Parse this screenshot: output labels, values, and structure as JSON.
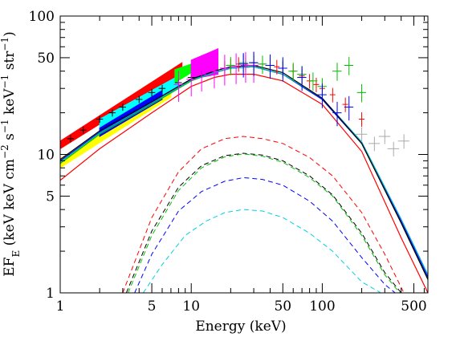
{
  "chart_data": {
    "type": "line",
    "title": "",
    "xlabel": "Energy (keV)",
    "ylabel": {
      "prefix": "EF",
      "sub": "E",
      "mid1": " (keV keV cm",
      "sup1": "−2",
      "mid2": " s",
      "sup2": "−1",
      "mid3": " keV",
      "sup3": "−1",
      "mid4": " str",
      "sup4": "−1",
      "suffix": ")"
    },
    "xscale": "log",
    "yscale": "log",
    "xlim": [
      1,
      640
    ],
    "ylim": [
      1,
      100
    ],
    "xticks": [
      {
        "value": 1,
        "label": "1"
      },
      {
        "value": 5,
        "label": "5"
      },
      {
        "value": 10,
        "label": "10"
      },
      {
        "value": 50,
        "label": "50"
      },
      {
        "value": 100,
        "label": "100"
      },
      {
        "value": 500,
        "label": "500"
      }
    ],
    "yticks": [
      {
        "value": 1,
        "label": "1"
      },
      {
        "value": 5,
        "label": "5"
      },
      {
        "value": 10,
        "label": "10"
      },
      {
        "value": 50,
        "label": "50"
      },
      {
        "value": 100,
        "label": "100"
      }
    ],
    "model_curves": [
      {
        "color": "#ff0000",
        "x": [
          1,
          2,
          5,
          10,
          15,
          20,
          30,
          50,
          100,
          200,
          400,
          640
        ],
        "y": [
          6.5,
          11,
          20,
          31,
          36,
          38,
          38,
          34,
          23,
          10.5,
          2.5,
          1.0
        ]
      },
      {
        "color": "#00c000",
        "x": [
          1,
          2,
          5,
          10,
          15,
          20,
          30,
          50,
          100,
          200,
          400,
          640
        ],
        "y": [
          8.6,
          14,
          23,
          34,
          39,
          42,
          43,
          38,
          25,
          12,
          3.2,
          1.25
        ]
      },
      {
        "color": "#0000ff",
        "x": [
          1,
          2,
          5,
          10,
          15,
          20,
          30,
          50,
          100,
          200,
          400,
          640
        ],
        "y": [
          9,
          14.5,
          24,
          35,
          39,
          42,
          43,
          38,
          25,
          12,
          3.3,
          1.3
        ]
      },
      {
        "color": "#00b0d0",
        "x": [
          1,
          2,
          5,
          10,
          15,
          20,
          30,
          50,
          100,
          200,
          400,
          640
        ],
        "y": [
          8.8,
          14.3,
          23.5,
          34.5,
          39,
          42,
          43,
          38,
          25.5,
          12.3,
          3.4,
          1.35
        ]
      },
      {
        "color": "#000000",
        "x": [
          1,
          2,
          5,
          10,
          15,
          20,
          30,
          50,
          100,
          200,
          400,
          640
        ],
        "y": [
          9.2,
          14.8,
          24,
          35,
          40,
          43,
          44,
          39,
          25.5,
          12,
          3.2,
          1.25
        ]
      }
    ],
    "component_curves": [
      {
        "color": "#ff0000",
        "x": [
          3.0,
          5,
          8,
          12,
          18,
          25,
          35,
          50,
          80,
          120,
          200,
          300,
          420
        ],
        "y": [
          1.0,
          3.5,
          7.5,
          11,
          13,
          13.5,
          13,
          12,
          9.5,
          7,
          3.8,
          1.9,
          1.0
        ]
      },
      {
        "color": "#000000",
        "x": [
          3.2,
          5,
          8,
          12,
          18,
          25,
          35,
          50,
          80,
          120,
          200,
          300,
          400
        ],
        "y": [
          1.0,
          2.8,
          5.8,
          8.3,
          9.8,
          10.2,
          9.9,
          9,
          7,
          5.1,
          2.7,
          1.4,
          1.0
        ]
      },
      {
        "color": "#00c000",
        "x": [
          3.3,
          5,
          8,
          12,
          18,
          25,
          35,
          50,
          80,
          120,
          200,
          300,
          390
        ],
        "y": [
          1.0,
          2.6,
          5.5,
          8.0,
          9.6,
          10.1,
          9.7,
          8.8,
          6.8,
          5.0,
          2.6,
          1.35,
          1.0
        ]
      },
      {
        "color": "#0000ff",
        "x": [
          3.7,
          5,
          8,
          12,
          18,
          25,
          35,
          50,
          80,
          120,
          200,
          300,
          360
        ],
        "y": [
          1.0,
          1.9,
          3.9,
          5.4,
          6.4,
          6.8,
          6.6,
          6.0,
          4.6,
          3.3,
          1.8,
          1.15,
          1.0
        ]
      },
      {
        "color": "#00d0e0",
        "x": [
          4.3,
          6,
          9,
          13,
          18,
          25,
          35,
          50,
          80,
          120,
          200,
          280
        ],
        "y": [
          1.0,
          1.6,
          2.6,
          3.3,
          3.8,
          4.0,
          3.9,
          3.5,
          2.7,
          2.0,
          1.2,
          1.0
        ]
      }
    ],
    "bands": [
      {
        "color": "#ff0000",
        "x": [
          1.0,
          8.5
        ],
        "y_low": [
          11.0,
          39
        ],
        "y_high": [
          12.5,
          46
        ]
      },
      {
        "color": "#ffff00",
        "x": [
          1.0,
          7.0
        ],
        "y_low": [
          8.0,
          26
        ],
        "y_high": [
          9.3,
          31
        ]
      },
      {
        "color": "#00ffff",
        "x": [
          2.0,
          8.0
        ],
        "y_low": [
          15,
          30
        ],
        "y_high": [
          18,
          37
        ]
      },
      {
        "color": "#0000ff",
        "x": [
          2.0,
          6.0
        ],
        "y_low": [
          13.5,
          25
        ],
        "y_high": [
          15.5,
          29
        ]
      },
      {
        "color": "#00ff00",
        "x": [
          7.5,
          10.0
        ],
        "y_low": [
          33,
          39
        ],
        "y_high": [
          41,
          45
        ]
      },
      {
        "color": "#ff00ff",
        "x": [
          10.0,
          16.0
        ],
        "y_low": [
          35,
          38
        ],
        "y_high": [
          48,
          58
        ]
      }
    ],
    "data_series": [
      {
        "color": "#000000",
        "x": [
          1.2,
          1.5,
          2.0,
          2.5,
          3.0,
          4.0,
          5.0,
          6.0,
          8.0,
          10.0,
          12.0
        ],
        "y": [
          13,
          15,
          18,
          20,
          22,
          25,
          28,
          30,
          33,
          36,
          38
        ],
        "xerr_frac": 0.06,
        "yerr_frac": 0.06
      },
      {
        "color": "#ff0000",
        "x": [
          15,
          18,
          20,
          23,
          26,
          30,
          35,
          40,
          45,
          50,
          60,
          70,
          80,
          90,
          100,
          120,
          150,
          200
        ],
        "y": [
          40,
          42,
          44,
          45,
          45,
          46,
          45,
          44,
          43,
          42,
          40,
          37,
          34,
          32,
          30,
          27,
          23,
          18
        ],
        "xerr_frac": 0.05,
        "yerr_frac": 0.12
      },
      {
        "color": "#ff00ff",
        "x": [
          8,
          10,
          12,
          15,
          18,
          22,
          26,
          30
        ],
        "y": [
          32,
          35,
          38,
          40,
          42,
          43,
          44,
          44
        ],
        "xerr_frac": 0.08,
        "yerr_frac": 0.25
      },
      {
        "color": "#00c000",
        "x": [
          20,
          25,
          30,
          35,
          40,
          50,
          60,
          70,
          85,
          100,
          130,
          160,
          200
        ],
        "y": [
          44,
          46,
          46,
          45,
          44,
          42,
          40,
          38,
          34,
          31,
          40,
          44,
          28
        ],
        "xerr_frac": 0.08,
        "yerr_frac": 0.15
      },
      {
        "color": "#0000ff",
        "x": [
          25,
          30,
          40,
          50,
          70,
          100,
          130,
          160
        ],
        "y": [
          45,
          46,
          44,
          42,
          36,
          27,
          20,
          22
        ],
        "xerr_frac": 0.08,
        "yerr_frac": 0.2
      },
      {
        "color": "#aaaaaa",
        "x": [
          200,
          250,
          300,
          350,
          420
        ],
        "y": [
          14,
          12,
          13.5,
          11,
          12.5
        ],
        "xerr_frac": 0.1,
        "yerr_frac": 0.12
      }
    ]
  }
}
